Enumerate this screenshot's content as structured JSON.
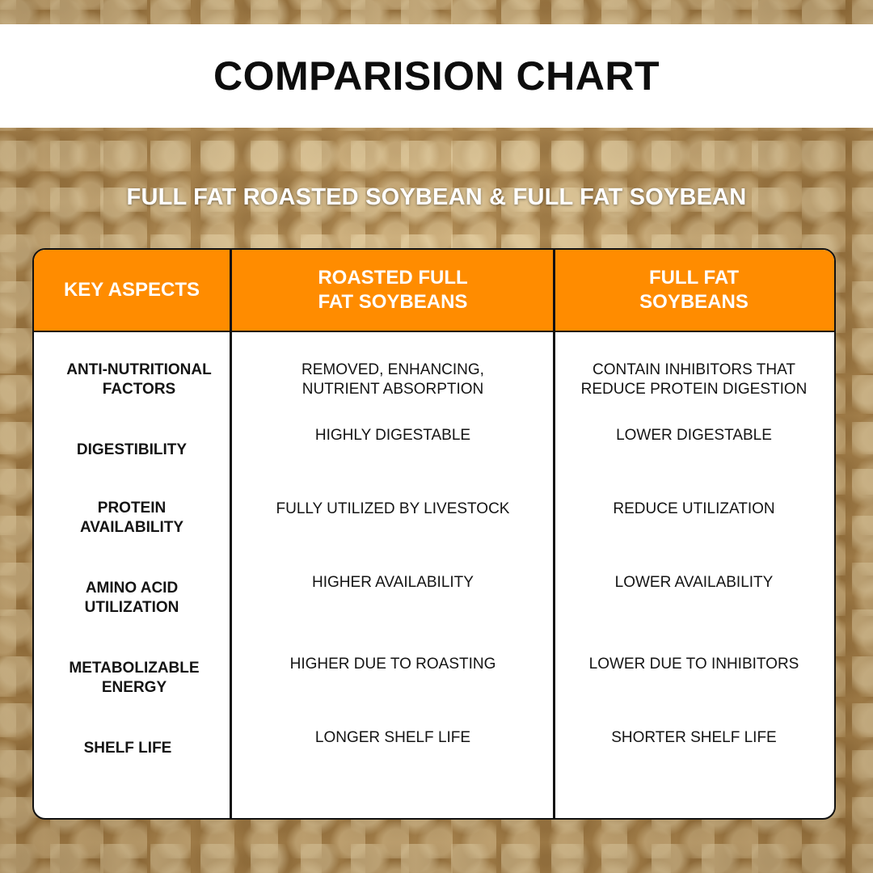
{
  "title": "COMPARISION CHART",
  "subtitle": "FULL FAT ROASTED SOYBEAN  & FULL FAT SOYBEAN",
  "colors": {
    "header_orange": "#ff8c00",
    "border": "#111111",
    "title_band": "#ffffff"
  },
  "table": {
    "headers": {
      "key": "KEY ASPECTS",
      "roasted": "ROASTED FULL\n FAT SOYBEANS",
      "full_fat": "FULL FAT\nSOYBEANS"
    },
    "rows": [
      {
        "aspect": "ANTI-NUTRITIONAL\nFACTORS",
        "roasted": "REMOVED, ENHANCING,\nNUTRIENT ABSORPTION",
        "full_fat": "CONTAIN INHIBITORS THAT\nREDUCE PROTEIN DIGESTION"
      },
      {
        "aspect": "DIGESTIBILITY",
        "roasted": "HIGHLY DIGESTABLE",
        "full_fat": "LOWER DIGESTABLE"
      },
      {
        "aspect": "PROTEIN\nAVAILABILITY",
        "roasted": "FULLY UTILIZED BY LIVESTOCK",
        "full_fat": "REDUCE UTILIZATION"
      },
      {
        "aspect": "AMINO ACID\nUTILIZATION",
        "roasted": "HIGHER AVAILABILITY",
        "full_fat": "LOWER AVAILABILITY"
      },
      {
        "aspect": "METABOLIZABLE\nENERGY",
        "roasted": "HIGHER DUE TO ROASTING",
        "full_fat": "LOWER DUE TO INHIBITORS"
      },
      {
        "aspect": "SHELF LIFE",
        "roasted": "LONGER SHELF LIFE",
        "full_fat": "SHORTER SHELF LIFE"
      }
    ]
  }
}
